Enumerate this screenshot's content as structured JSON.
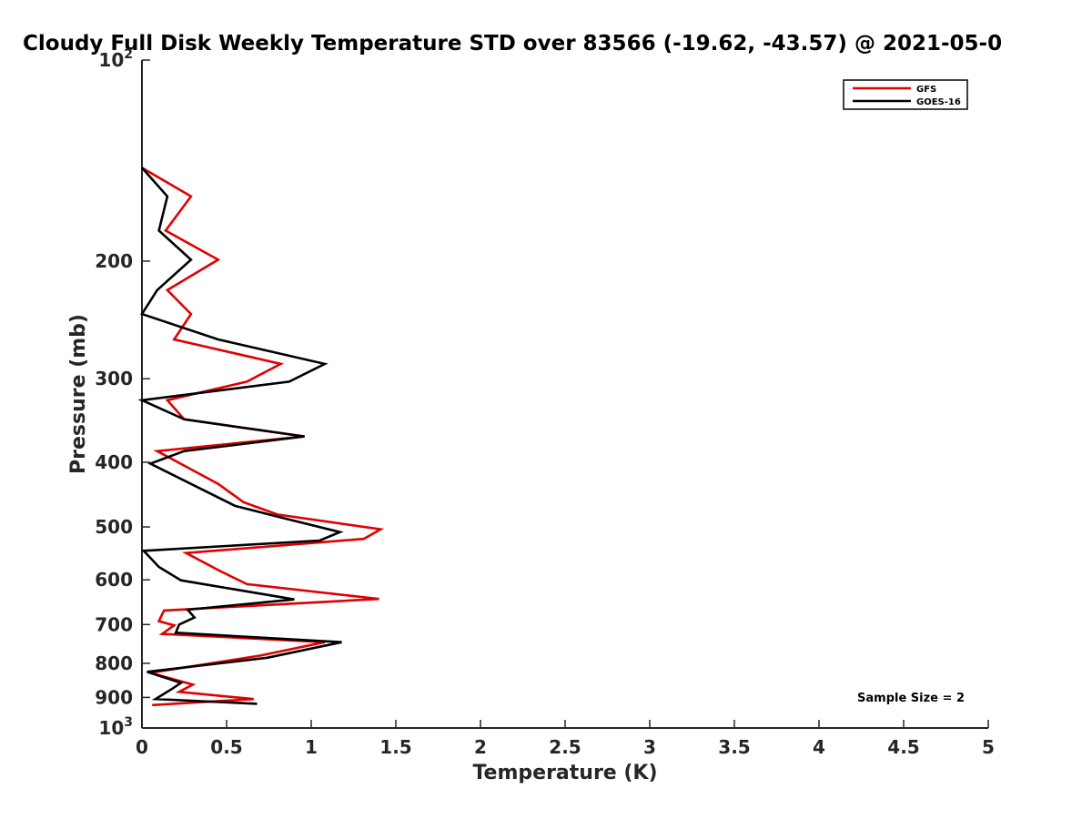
{
  "chart_data": {
    "type": "line",
    "title": "Cloudy Full Disk Weekly Temperature STD over 83566 (-19.62, -43.57) @ 2021-05-0",
    "xlabel": "Temperature (K)",
    "ylabel": "Pressure (mb)",
    "xlim": [
      0,
      5
    ],
    "ylim": [
      1000,
      100
    ],
    "yscale": "log",
    "y_reversed": true,
    "grid": false,
    "legend_position": "top-right",
    "xticks": [
      0,
      0.5,
      1,
      1.5,
      2,
      2.5,
      3,
      3.5,
      4,
      4.5,
      5
    ],
    "xtick_labels": [
      "0",
      "0.5",
      "1",
      "1.5",
      "2",
      "2.5",
      "3",
      "3.5",
      "4",
      "4.5",
      "5"
    ],
    "yticks": [
      100,
      200,
      300,
      400,
      500,
      600,
      700,
      800,
      900,
      1000
    ],
    "ytick_labels": [
      {
        "base": "10",
        "exp": "2"
      },
      {
        "base": "200",
        "exp": ""
      },
      {
        "base": "300",
        "exp": ""
      },
      {
        "base": "400",
        "exp": ""
      },
      {
        "base": "500",
        "exp": ""
      },
      {
        "base": "600",
        "exp": ""
      },
      {
        "base": "700",
        "exp": ""
      },
      {
        "base": "800",
        "exp": ""
      },
      {
        "base": "900",
        "exp": ""
      },
      {
        "base": "10",
        "exp": "3"
      }
    ],
    "annotation": "Sample Size = 2",
    "series": [
      {
        "name": "GFS",
        "color": "#e00000",
        "points": [
          [
            0.0,
            145
          ],
          [
            0.29,
            160
          ],
          [
            0.14,
            180
          ],
          [
            0.45,
            199
          ],
          [
            0.15,
            221
          ],
          [
            0.29,
            240
          ],
          [
            0.19,
            262
          ],
          [
            0.82,
            285
          ],
          [
            0.62,
            303
          ],
          [
            0.15,
            323
          ],
          [
            0.25,
            345
          ],
          [
            0.96,
            366
          ],
          [
            0.09,
            385
          ],
          [
            0.45,
            431
          ],
          [
            0.6,
            459
          ],
          [
            0.8,
            479
          ],
          [
            1.41,
            504
          ],
          [
            1.31,
            521
          ],
          [
            0.26,
            547
          ],
          [
            0.45,
            580
          ],
          [
            0.62,
            609
          ],
          [
            1.4,
            641
          ],
          [
            0.13,
            667
          ],
          [
            0.1,
            692
          ],
          [
            0.19,
            702
          ],
          [
            0.12,
            723
          ],
          [
            1.08,
            744
          ],
          [
            0.7,
            779
          ],
          [
            0.05,
            827
          ],
          [
            0.3,
            861
          ],
          [
            0.22,
            883
          ],
          [
            0.66,
            905
          ],
          [
            0.06,
            924
          ]
        ]
      },
      {
        "name": "GOES-16",
        "color": "#000000",
        "points": [
          [
            0.0,
            145
          ],
          [
            0.15,
            160
          ],
          [
            0.1,
            180
          ],
          [
            0.29,
            199
          ],
          [
            0.09,
            221
          ],
          [
            0.0,
            240
          ],
          [
            0.45,
            262
          ],
          [
            1.08,
            285
          ],
          [
            0.87,
            303
          ],
          [
            0.0,
            323
          ],
          [
            0.25,
            345
          ],
          [
            0.96,
            366
          ],
          [
            0.25,
            385
          ],
          [
            0.05,
            402
          ],
          [
            0.36,
            440
          ],
          [
            0.55,
            465
          ],
          [
            0.85,
            486
          ],
          [
            1.17,
            509
          ],
          [
            1.05,
            524
          ],
          [
            0.01,
            543
          ],
          [
            0.1,
            574
          ],
          [
            0.23,
            601
          ],
          [
            0.9,
            642
          ],
          [
            0.27,
            665
          ],
          [
            0.31,
            683
          ],
          [
            0.22,
            700
          ],
          [
            0.2,
            720
          ],
          [
            1.18,
            744
          ],
          [
            0.74,
            785
          ],
          [
            0.03,
            824
          ],
          [
            0.23,
            856
          ],
          [
            0.18,
            873
          ],
          [
            0.08,
            905
          ],
          [
            0.68,
            920
          ]
        ]
      }
    ]
  }
}
